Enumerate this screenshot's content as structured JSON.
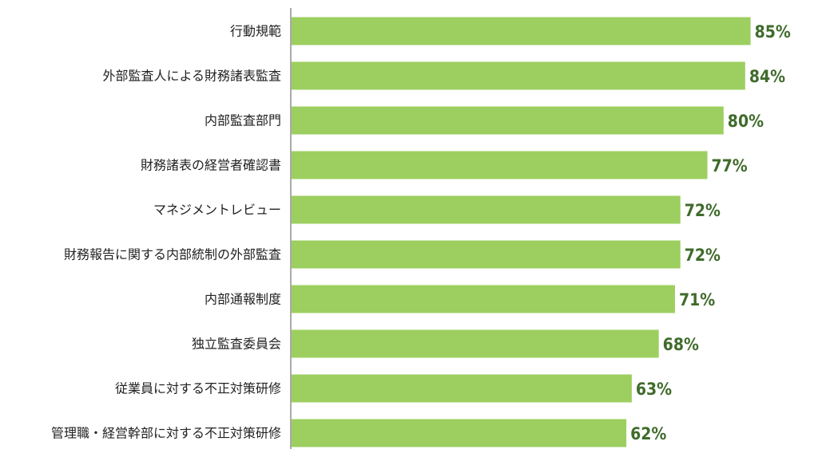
{
  "chart_data": {
    "type": "bar",
    "orientation": "horizontal",
    "title": "",
    "xlabel": "",
    "ylabel": "",
    "categories": [
      "行動規範",
      "外部監査人による財務諸表監査",
      "内部監査部門",
      "財務諸表の経営者確認書",
      "マネジメントレビュー",
      "財務報告に関する内部統制の外部監査",
      "内部通報制度",
      "独立監査委員会",
      "従業員に対する不正対策研修",
      "管理職・経営幹部に対する不正対策研修"
    ],
    "values": [
      85,
      84,
      80,
      77,
      72,
      72,
      71,
      68,
      63,
      62
    ],
    "value_labels": [
      "85%",
      "84%",
      "80%",
      "77%",
      "72%",
      "72%",
      "71%",
      "68%",
      "63%",
      "62%"
    ],
    "unit": "%",
    "xlim": [
      0,
      100
    ],
    "grid": false,
    "legend": "none",
    "bar_color": "#9ccf5f",
    "value_label_color": "#3f6b2b",
    "label_color": "#222222"
  }
}
